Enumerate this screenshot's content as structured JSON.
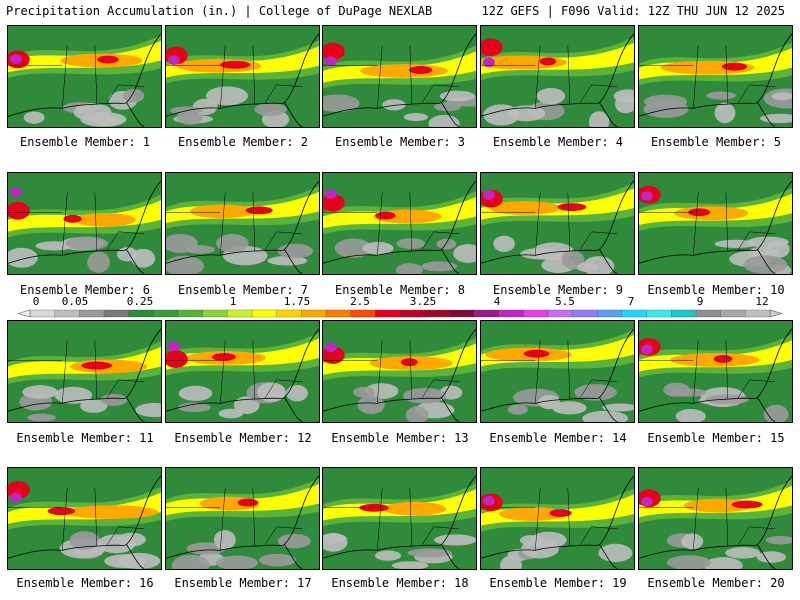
{
  "header": {
    "left": "Precipitation Accumulation (in.) | College of DuPage NEXLAB",
    "right": "12Z GEFS | F096 Valid: 12Z THU JUN 12 2025"
  },
  "colorbar": {
    "labels": [
      "0",
      "0.05",
      "0.25",
      "1",
      "1.75",
      "2.5",
      "3.25",
      "4",
      "5.5",
      "7",
      "9",
      "12"
    ],
    "colors": [
      "#d8d8d8",
      "#bdbdbd",
      "#9a9a9a",
      "#7a7a7a",
      "#2f8a3c",
      "#3c9a3f",
      "#5ab43b",
      "#8fd13a",
      "#ccee33",
      "#ffff00",
      "#ffd400",
      "#ffa800",
      "#ff7a00",
      "#ff4a00",
      "#e8001a",
      "#c20026",
      "#9c0a2a",
      "#7e0c3a",
      "#9b1a8a",
      "#c026c6",
      "#e53ee8",
      "#c66cff",
      "#8e7dff",
      "#5f9cff",
      "#21d6ff",
      "#3fe8e8",
      "#1ec7c7",
      "#8f8f8f",
      "#a8a8a8",
      "#c0c0c0"
    ]
  },
  "members": [
    {
      "label": "Ensemble Member: 1"
    },
    {
      "label": "Ensemble Member: 2"
    },
    {
      "label": "Ensemble Member: 3"
    },
    {
      "label": "Ensemble Member: 4"
    },
    {
      "label": "Ensemble Member: 5"
    },
    {
      "label": "Ensemble Member: 6"
    },
    {
      "label": "Ensemble Member: 7"
    },
    {
      "label": "Ensemble Member: 8"
    },
    {
      "label": "Ensemble Member: 9"
    },
    {
      "label": "Ensemble Member: 10"
    },
    {
      "label": "Ensemble Member: 11"
    },
    {
      "label": "Ensemble Member: 12"
    },
    {
      "label": "Ensemble Member: 13"
    },
    {
      "label": "Ensemble Member: 14"
    },
    {
      "label": "Ensemble Member: 15"
    },
    {
      "label": "Ensemble Member: 16"
    },
    {
      "label": "Ensemble Member: 17"
    },
    {
      "label": "Ensemble Member: 18"
    },
    {
      "label": "Ensemble Member: 19"
    },
    {
      "label": "Ensemble Member: 20"
    }
  ]
}
